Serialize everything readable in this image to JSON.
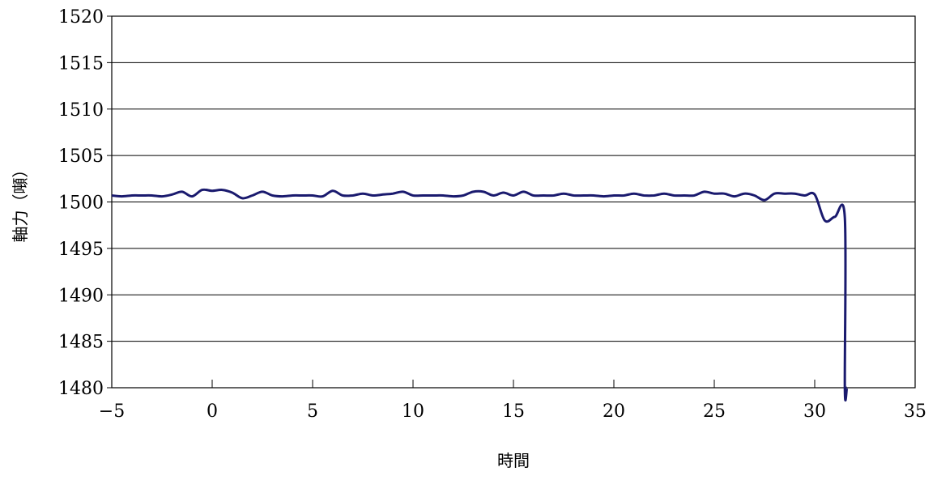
{
  "chart_data": {
    "type": "line",
    "title": "",
    "xlabel": "時間",
    "ylabel": "軸力（噸）",
    "xlim": [
      -5,
      35
    ],
    "ylim": [
      1480,
      1520
    ],
    "x_ticks": [
      -5,
      0,
      5,
      10,
      15,
      20,
      25,
      30,
      35
    ],
    "y_ticks": [
      1480,
      1485,
      1490,
      1495,
      1500,
      1505,
      1510,
      1515,
      1520
    ],
    "x_tick_labels": [
      "−5",
      "0",
      "5",
      "10",
      "15",
      "20",
      "25",
      "30",
      "35"
    ],
    "y_tick_labels": [
      "1480",
      "1485",
      "1490",
      "1495",
      "1500",
      "1505",
      "1510",
      "1515",
      "1520"
    ],
    "grid": "horizontal",
    "legend": "none",
    "series": [
      {
        "color": "#1a1a6e",
        "x": [
          -5,
          -4.5,
          -4,
          -3.5,
          -3,
          -2.5,
          -2,
          -1.5,
          -1,
          -0.5,
          0,
          0.5,
          1,
          1.5,
          2,
          2.5,
          3,
          3.5,
          4,
          4.5,
          5,
          5.5,
          6,
          6.5,
          7,
          7.5,
          8,
          8.5,
          9,
          9.5,
          10,
          10.5,
          11,
          11.5,
          12,
          12.5,
          13,
          13.5,
          14,
          14.5,
          15,
          15.5,
          16,
          16.5,
          17,
          17.5,
          18,
          18.5,
          19,
          19.5,
          20,
          20.5,
          21,
          21.5,
          22,
          22.5,
          23,
          23.5,
          24,
          24.5,
          25,
          25.5,
          26,
          26.5,
          27,
          27.5,
          28,
          28.5,
          29,
          29.5,
          30,
          30.5,
          31,
          31.5,
          31.5,
          31.6
        ],
        "y": [
          1500.7,
          1500.6,
          1500.7,
          1500.7,
          1500.7,
          1500.6,
          1500.8,
          1501.1,
          1500.6,
          1501.3,
          1501.2,
          1501.3,
          1501.0,
          1500.4,
          1500.7,
          1501.1,
          1500.7,
          1500.6,
          1500.7,
          1500.7,
          1500.7,
          1500.6,
          1501.2,
          1500.7,
          1500.7,
          1500.9,
          1500.7,
          1500.8,
          1500.9,
          1501.1,
          1500.7,
          1500.7,
          1500.7,
          1500.7,
          1500.6,
          1500.7,
          1501.1,
          1501.1,
          1500.7,
          1501.0,
          1500.7,
          1501.1,
          1500.7,
          1500.7,
          1500.7,
          1500.9,
          1500.7,
          1500.7,
          1500.7,
          1500.6,
          1500.7,
          1500.7,
          1500.9,
          1500.7,
          1500.7,
          1500.9,
          1500.7,
          1500.7,
          1500.7,
          1501.1,
          1500.9,
          1500.9,
          1500.6,
          1500.9,
          1500.7,
          1500.2,
          1500.9,
          1500.9,
          1500.9,
          1500.7,
          1500.8,
          1498.0,
          1498.4,
          1498.3,
          1480.0,
          1480.0
        ]
      }
    ]
  }
}
